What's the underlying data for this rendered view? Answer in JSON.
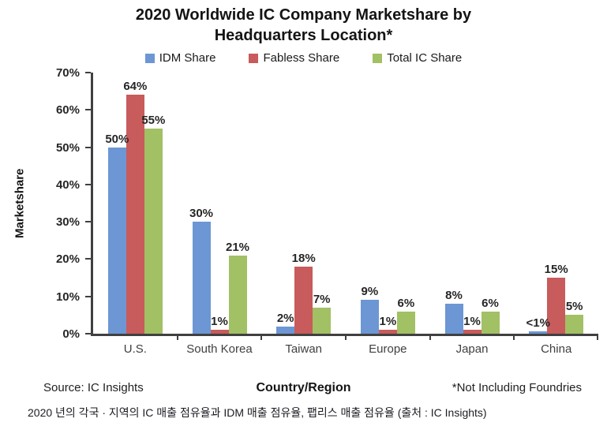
{
  "title": "2020 Worldwide IC Company Marketshare by Headquarters Location*",
  "chart_data": {
    "type": "bar",
    "categories": [
      "U.S.",
      "South Korea",
      "Taiwan",
      "Europe",
      "Japan",
      "China"
    ],
    "series": [
      {
        "name": "IDM Share",
        "color": "#6D96D4",
        "values": [
          50,
          30,
          2,
          9,
          8,
          0.7
        ],
        "labels": [
          "50%",
          "30%",
          "2%",
          "9%",
          "8%",
          "<1%"
        ]
      },
      {
        "name": "Fabless Share",
        "color": "#C85B5B",
        "values": [
          64,
          1,
          18,
          1,
          1,
          15
        ],
        "labels": [
          "64%",
          "1%",
          "18%",
          "1%",
          "1%",
          "15%"
        ]
      },
      {
        "name": "Total IC Share",
        "color": "#A2C064",
        "values": [
          55,
          21,
          7,
          6,
          6,
          5
        ],
        "labels": [
          "55%",
          "21%",
          "7%",
          "6%",
          "6%",
          "5%"
        ]
      }
    ],
    "title": "2020 Worldwide IC Company Marketshare by Headquarters Location*",
    "xlabel": "Country/Region",
    "ylabel": "Marketshare",
    "ylim": [
      0,
      70
    ],
    "yticks": [
      "0%",
      "10%",
      "20%",
      "30%",
      "40%",
      "50%",
      "60%",
      "70%"
    ],
    "legend_position": "top",
    "grid": false
  },
  "footer": {
    "source": "Source: IC Insights",
    "note": "*Not Including Foundries"
  },
  "caption": "2020 년의 각국 · 지역의 IC 매출 점유율과 IDM 매출 점유율, 팹리스 매출 점유율 (출처 : IC Insights)"
}
